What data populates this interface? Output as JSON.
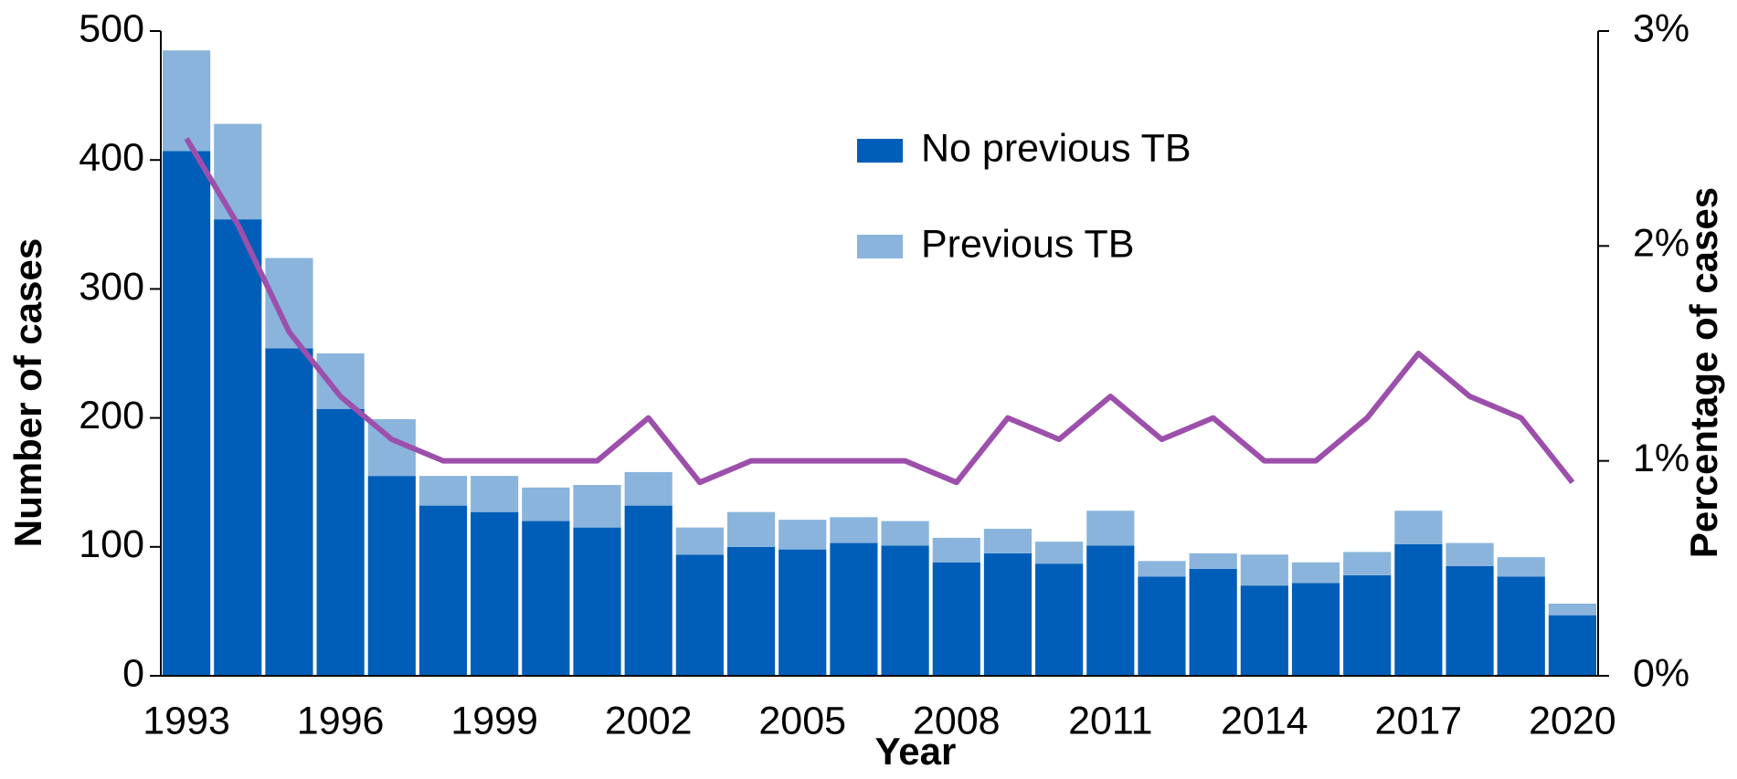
{
  "chart_data": {
    "type": "bar",
    "xlabel": "Year",
    "ylabel": "Number of cases",
    "y2label": "Percentage of cases",
    "categories": [
      "1993",
      null,
      null,
      "1996",
      null,
      null,
      "1999",
      null,
      null,
      "2002",
      null,
      null,
      "2005",
      null,
      null,
      "2008",
      null,
      null,
      "2011",
      null,
      null,
      "2014",
      null,
      null,
      "2017",
      null,
      null,
      "2020"
    ],
    "stacked": true,
    "series": [
      {
        "name": "No previous TB",
        "color": "#005eb8",
        "values": [
          407,
          354,
          254,
          207,
          155,
          132,
          127,
          120,
          115,
          132,
          94,
          100,
          98,
          103,
          101,
          88,
          95,
          87,
          101,
          77,
          83,
          70,
          72,
          78,
          102,
          85,
          77,
          47
        ]
      },
      {
        "name": "Previous TB",
        "color": "#8ab4dc",
        "values": [
          78,
          74,
          70,
          43,
          44,
          23,
          28,
          26,
          33,
          26,
          21,
          27,
          23,
          20,
          19,
          19,
          19,
          17,
          27,
          12,
          12,
          24,
          16,
          18,
          26,
          18,
          15,
          9
        ]
      },
      {
        "type": "line",
        "axis": "y2",
        "color": "#9c4fab",
        "values": [
          2.5,
          2.1,
          1.6,
          1.3,
          1.1,
          1.0,
          1.0,
          1.0,
          1.0,
          1.2,
          0.9,
          1.0,
          1.0,
          1.0,
          1.0,
          0.9,
          1.2,
          1.1,
          1.3,
          1.1,
          1.2,
          1.0,
          1.0,
          1.2,
          1.5,
          1.3,
          1.2,
          0.9
        ]
      }
    ],
    "ylim": [
      0,
      500
    ],
    "yticks": [
      0,
      100,
      200,
      300,
      400,
      500
    ],
    "y2lim": [
      0,
      3
    ],
    "y2ticks": [
      {
        "value": 0,
        "label": "0%"
      },
      {
        "value": 1,
        "label": "1%"
      },
      {
        "value": 2,
        "label": "2%"
      },
      {
        "value": 3,
        "label": "3%"
      }
    ],
    "legend": "top-center"
  }
}
